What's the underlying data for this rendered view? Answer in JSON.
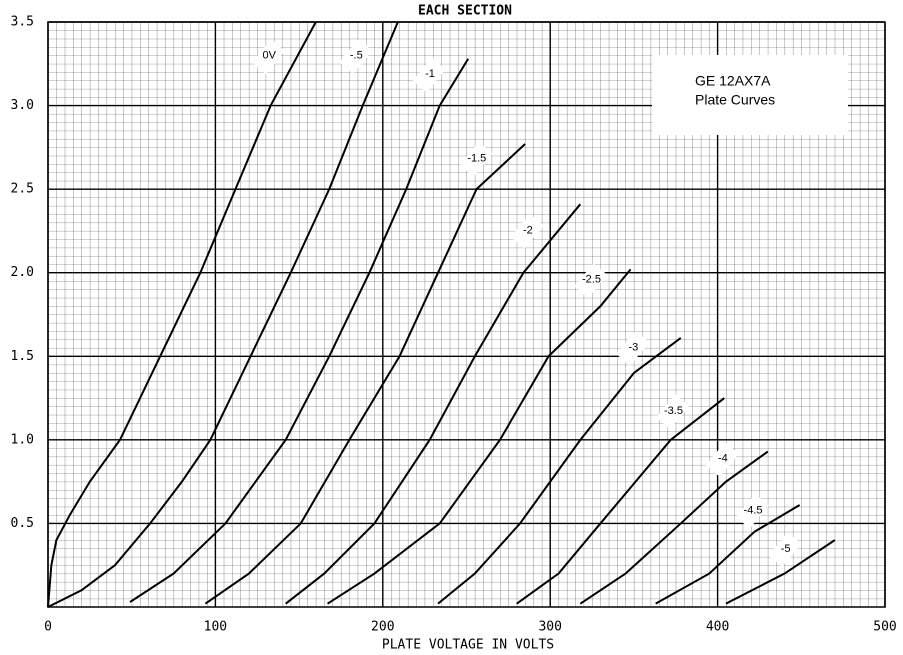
{
  "chart_data": {
    "type": "line",
    "title": "EACH SECTION",
    "xlabel": "PLATE VOLTAGE IN VOLTS",
    "annotation": [
      "GE 12AX7A",
      "Plate Curves"
    ],
    "xlim": [
      0,
      500
    ],
    "xticks": [
      0,
      100,
      200,
      300,
      400,
      500
    ],
    "ylim": [
      0,
      3.5
    ],
    "yticks": [
      0.5,
      {
        "value": 1,
        "label": "1.0"
      },
      1.5,
      {
        "value": 2,
        "label": "2.0"
      },
      2.5,
      {
        "value": 3,
        "label": "3.0"
      },
      3.5
    ],
    "grid": true,
    "color": "#000000",
    "series": [
      {
        "name": "0V",
        "x": [
          0,
          2,
          5,
          13,
          25,
          43,
          67,
          91,
          112,
          133,
          160
        ],
        "values": [
          0,
          0.25,
          0.4,
          0.55,
          0.75,
          1.0,
          1.5,
          2.0,
          2.5,
          3.0,
          3.5
        ]
      },
      {
        "name": "-.5",
        "x": [
          0,
          20,
          40,
          61,
          80,
          97,
          121,
          145,
          168,
          188,
          209
        ],
        "values": [
          0,
          0.1,
          0.25,
          0.5,
          0.75,
          1.0,
          1.5,
          2.0,
          2.5,
          3.0,
          3.5
        ]
      },
      {
        "name": "-1",
        "x": [
          49,
          75,
          106,
          142,
          168,
          192,
          214,
          234,
          251
        ],
        "values": [
          0.03,
          0.2,
          0.5,
          1.0,
          1.5,
          2.0,
          2.5,
          3.0,
          3.28
        ]
      },
      {
        "name": "-1.5",
        "x": [
          94,
          120,
          151,
          180,
          210,
          233,
          256,
          285
        ],
        "values": [
          0.02,
          0.2,
          0.5,
          1.0,
          1.5,
          2.0,
          2.5,
          2.77
        ]
      },
      {
        "name": "-2",
        "x": [
          142,
          165,
          195,
          228,
          255,
          284,
          318
        ],
        "values": [
          0.02,
          0.2,
          0.5,
          1.0,
          1.5,
          2.0,
          2.41
        ]
      },
      {
        "name": "-2.5",
        "x": [
          167,
          195,
          234,
          270,
          299,
          330,
          348
        ],
        "values": [
          0.02,
          0.2,
          0.5,
          1.0,
          1.5,
          1.8,
          2.02
        ]
      },
      {
        "name": "-3",
        "x": [
          233,
          255,
          282,
          318,
          350,
          378
        ],
        "values": [
          0.02,
          0.2,
          0.5,
          1.0,
          1.4,
          1.61
        ]
      },
      {
        "name": "-3.5",
        "x": [
          280,
          305,
          330,
          372,
          404
        ],
        "values": [
          0.02,
          0.2,
          0.5,
          1.0,
          1.25
        ]
      },
      {
        "name": "-4",
        "x": [
          318,
          345,
          378,
          405,
          430
        ],
        "values": [
          0.02,
          0.2,
          0.5,
          0.75,
          0.93
        ]
      },
      {
        "name": "-4.5",
        "x": [
          363,
          395,
          422,
          449
        ],
        "values": [
          0.02,
          0.2,
          0.45,
          0.61
        ]
      },
      {
        "name": "-5",
        "x": [
          405,
          440,
          470
        ],
        "values": [
          0.02,
          0.2,
          0.4
        ]
      }
    ]
  }
}
